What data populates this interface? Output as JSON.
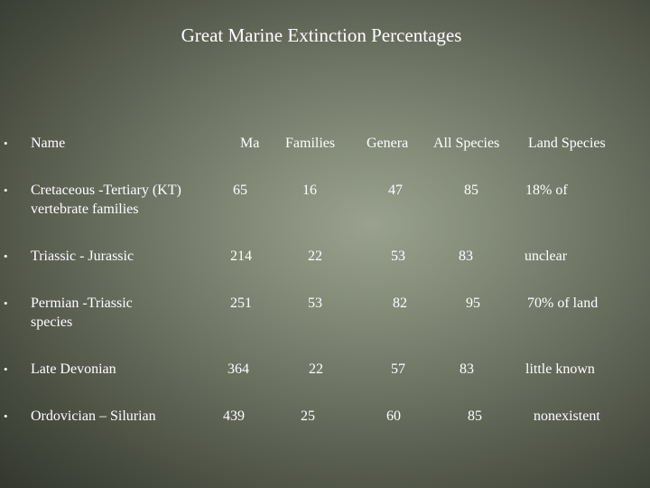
{
  "slide": {
    "title": "Great Marine Extinction Percentages",
    "bullet": "•",
    "headers": {
      "name": "Name",
      "ma": "Ma",
      "families": "Families",
      "genera": "Genera",
      "all_species": "All Species",
      "land_species": "Land Species"
    },
    "rows": [
      {
        "name_line1": "Cretaceous -Tertiary (KT)",
        "name_line2": "vertebrate families",
        "ma": "65",
        "families": "16",
        "genera": "47",
        "all_species": "85",
        "land_species": "18% of"
      },
      {
        "name_line1": "Triassic - Jurassic",
        "name_line2": "",
        "ma": "214",
        "families": "22",
        "genera": "53",
        "all_species": "83",
        "land_species": "unclear"
      },
      {
        "name_line1": "Permian -Triassic",
        "name_line2": "species",
        "ma": "251",
        "families": "53",
        "genera": "82",
        "all_species": "95",
        "land_species": "70% of land"
      },
      {
        "name_line1": "Late Devonian",
        "name_line2": "",
        "ma": "364",
        "families": "22",
        "genera": "57",
        "all_species": "83",
        "land_species": "little known"
      },
      {
        "name_line1": "Ordovician – Silurian",
        "name_line2": "",
        "ma": "439",
        "families": "25",
        "genera": "60",
        "all_species": "85",
        "land_species": "nonexistent"
      }
    ]
  }
}
